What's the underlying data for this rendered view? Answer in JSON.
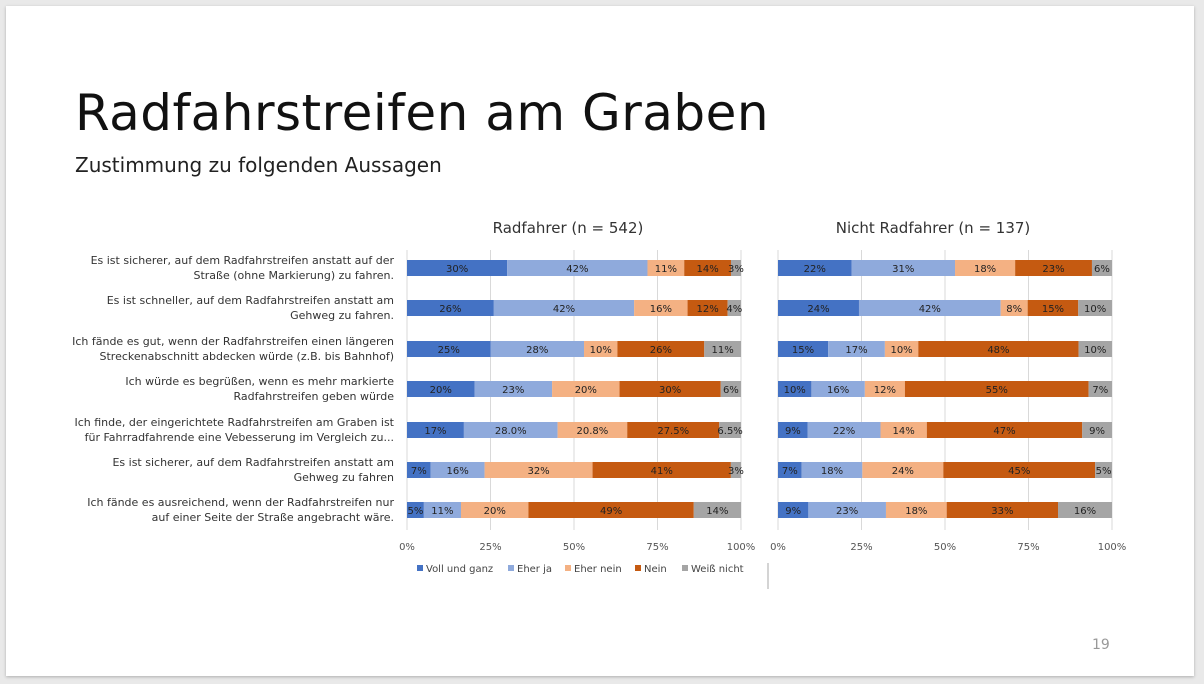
{
  "slide": {
    "title": "Radfahrstreifen am Graben",
    "subtitle": "Zustimmung zu folgenden Aussagen",
    "page_number": "19"
  },
  "chart_data": {
    "type": "bar",
    "orientation": "horizontal",
    "stacked": "100%",
    "categories": [
      [
        "Es ist sicherer, auf dem Radfahrstreifen anstatt auf der",
        "Straße (ohne Markierung) zu fahren."
      ],
      [
        "Es ist schneller, auf dem Radfahrstreifen anstatt am",
        "Gehweg zu fahren."
      ],
      [
        "Ich fände es gut, wenn der Radfahrstreifen einen längeren",
        "Streckenabschnitt abdecken würde (z.B. bis Bahnhof)"
      ],
      [
        "Ich würde es begrüßen, wenn es mehr markierte",
        "Radfahrstreifen geben würde"
      ],
      [
        "Ich finde, der eingerichtete Radfahrstreifen  am Graben ist",
        "für Fahrradfahrende eine Vebesserung im Vergleich zu..."
      ],
      [
        "Es ist sicherer, auf dem Radfahrstreifen anstatt am",
        "Gehweg zu fahren"
      ],
      [
        "Ich fände es ausreichend, wenn der Radfahrstreifen nur",
        "auf einer Seite der Straße angebracht wäre."
      ]
    ],
    "legend": [
      {
        "name": "Voll und ganz",
        "color": "#4472c4"
      },
      {
        "name": "Eher ja",
        "color": "#8faadc"
      },
      {
        "name": "Eher nein",
        "color": "#f4b183"
      },
      {
        "name": "Nein",
        "color": "#c55a11"
      },
      {
        "name": "Weiß nicht",
        "color": "#a5a5a5"
      }
    ],
    "legend_position": "bottom",
    "x_ticks": [
      "0%",
      "25%",
      "50%",
      "75%",
      "100%"
    ],
    "xlim": [
      0,
      100
    ],
    "panels": [
      {
        "title": "Radfahrer (n = 542)",
        "values": [
          [
            30,
            42,
            11,
            14,
            3
          ],
          [
            26,
            42,
            16,
            12,
            4
          ],
          [
            25,
            28,
            10,
            26,
            11
          ],
          [
            20,
            23,
            20,
            30,
            6
          ],
          [
            17,
            28.0,
            20.8,
            27.5,
            6.5
          ],
          [
            7,
            16,
            32,
            41,
            3
          ],
          [
            5,
            11,
            20,
            49,
            14
          ]
        ],
        "labels": [
          [
            "30%",
            "42%",
            "11%",
            "14%",
            "3%"
          ],
          [
            "26%",
            "42%",
            "16%",
            "12%",
            "4%"
          ],
          [
            "25%",
            "28%",
            "10%",
            "26%",
            "11%"
          ],
          [
            "20%",
            "23%",
            "20%",
            "30%",
            "6%"
          ],
          [
            "17%",
            "28.0%",
            "20.8%",
            "27.5%",
            "6.5%"
          ],
          [
            "7%",
            "16%",
            "32%",
            "41%",
            "3%"
          ],
          [
            "5%",
            "11%",
            "20%",
            "49%",
            "14%"
          ]
        ]
      },
      {
        "title": "Nicht Radfahrer (n = 137)",
        "values": [
          [
            22,
            31,
            18,
            23,
            6
          ],
          [
            24,
            42,
            8,
            15,
            10
          ],
          [
            15,
            17,
            10,
            48,
            10
          ],
          [
            10,
            16,
            12,
            55,
            7
          ],
          [
            9,
            22,
            14,
            47,
            9
          ],
          [
            7,
            18,
            24,
            45,
            5
          ],
          [
            9,
            23,
            18,
            33,
            16
          ]
        ],
        "labels": [
          [
            "22%",
            "31%",
            "18%",
            "23%",
            "6%"
          ],
          [
            "24%",
            "42%",
            "8%",
            "15%",
            "10%"
          ],
          [
            "15%",
            "17%",
            "10%",
            "48%",
            "10%"
          ],
          [
            "10%",
            "16%",
            "12%",
            "55%",
            "7%"
          ],
          [
            "9%",
            "22%",
            "14%",
            "47%",
            "9%"
          ],
          [
            "7%",
            "18%",
            "24%",
            "45%",
            "5%"
          ],
          [
            "9%",
            "23%",
            "18%",
            "33%",
            "16%"
          ]
        ]
      }
    ]
  }
}
